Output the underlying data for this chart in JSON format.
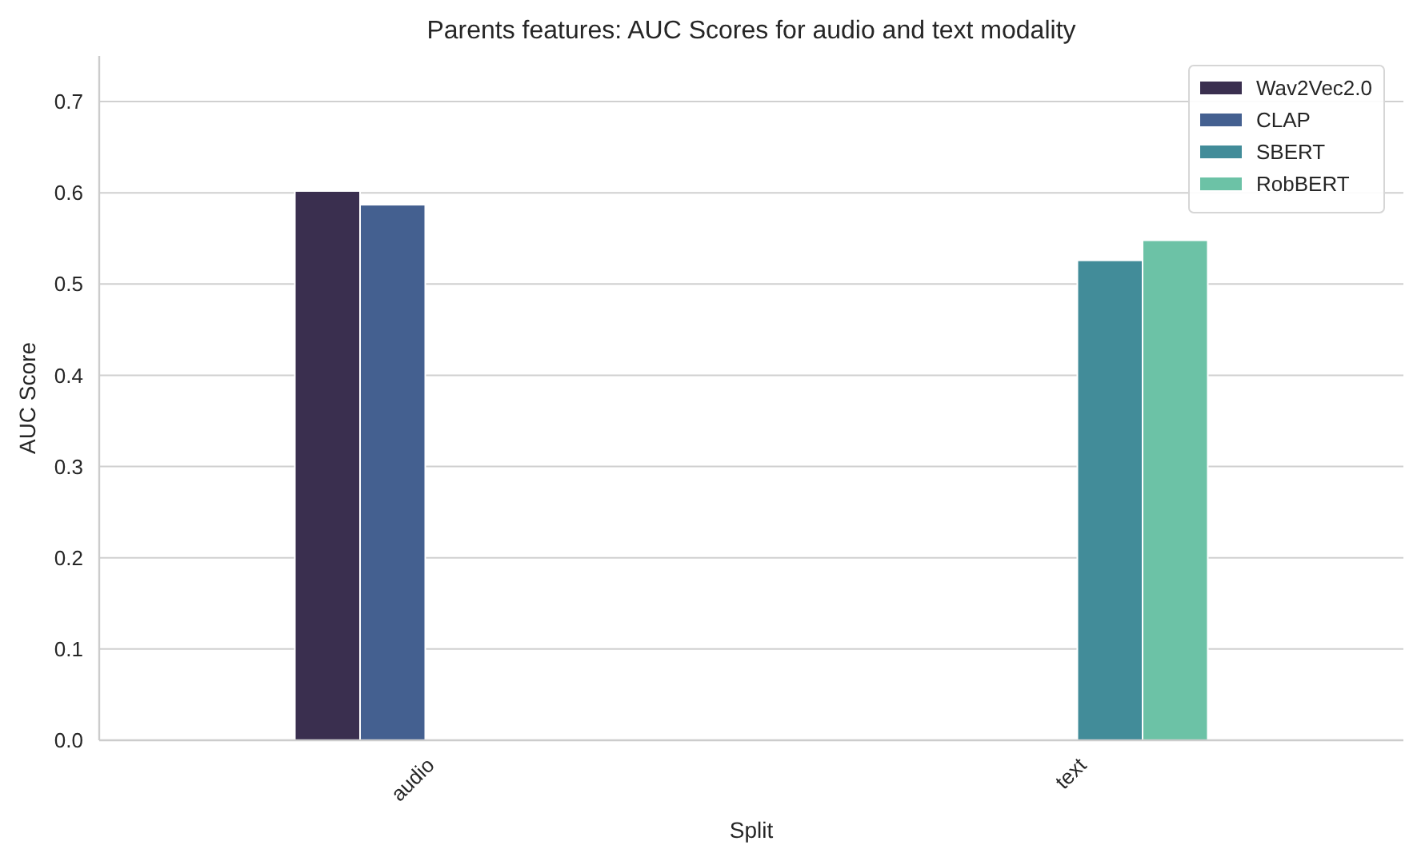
{
  "chart_data": {
    "type": "bar",
    "title": "Parents features: AUC Scores for audio and text modality",
    "xlabel": "Split",
    "ylabel": "AUC Score",
    "categories": [
      "audio",
      "text"
    ],
    "series": [
      {
        "name": "Wav2Vec2.0",
        "color": "#3a2f4f",
        "values": [
          0.602,
          null
        ]
      },
      {
        "name": "CLAP",
        "color": "#446090",
        "values": [
          0.587,
          null
        ]
      },
      {
        "name": "SBERT",
        "color": "#428c99",
        "values": [
          null,
          0.526
        ]
      },
      {
        "name": "RobBERT",
        "color": "#6cc2a6",
        "values": [
          null,
          0.548
        ]
      }
    ],
    "ylim": [
      0,
      0.75
    ],
    "yticks": [
      {
        "value": 0,
        "label": "0.0"
      },
      0.1,
      0.2,
      0.3,
      0.4,
      0.5,
      0.6,
      0.7
    ],
    "grid": "y",
    "legend": "top right"
  }
}
